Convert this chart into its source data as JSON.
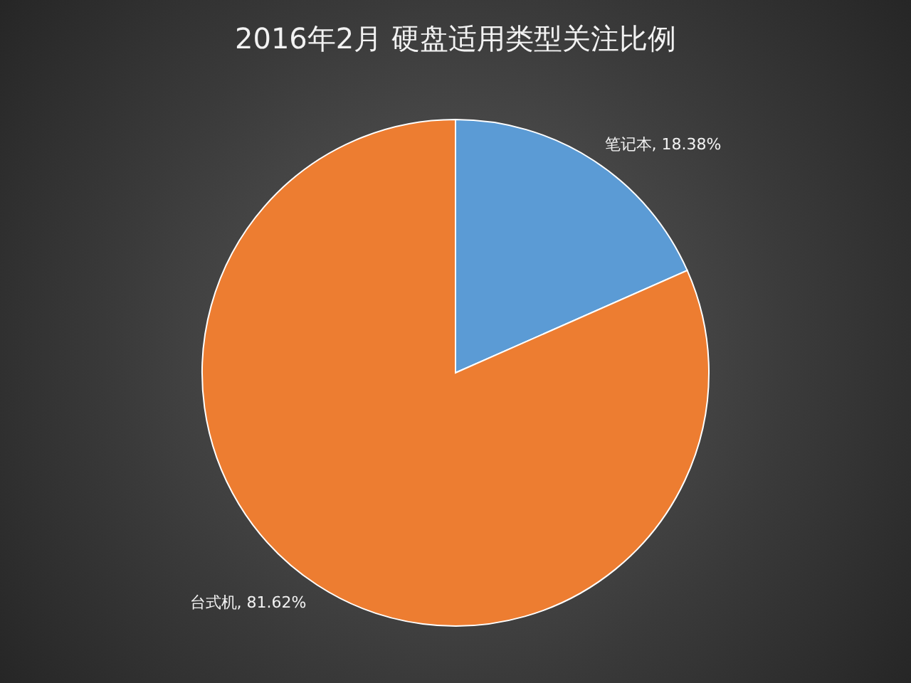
{
  "chart_data": {
    "type": "pie",
    "title": "2016年2月 硬盘适用类型关注比例",
    "categories": [
      "笔记本",
      "台式机"
    ],
    "values": [
      18.38,
      81.62
    ],
    "value_labels": [
      ", 18.38%",
      ", 81.62%"
    ],
    "colors": [
      "#5b9bd5",
      "#ed7d31"
    ]
  }
}
